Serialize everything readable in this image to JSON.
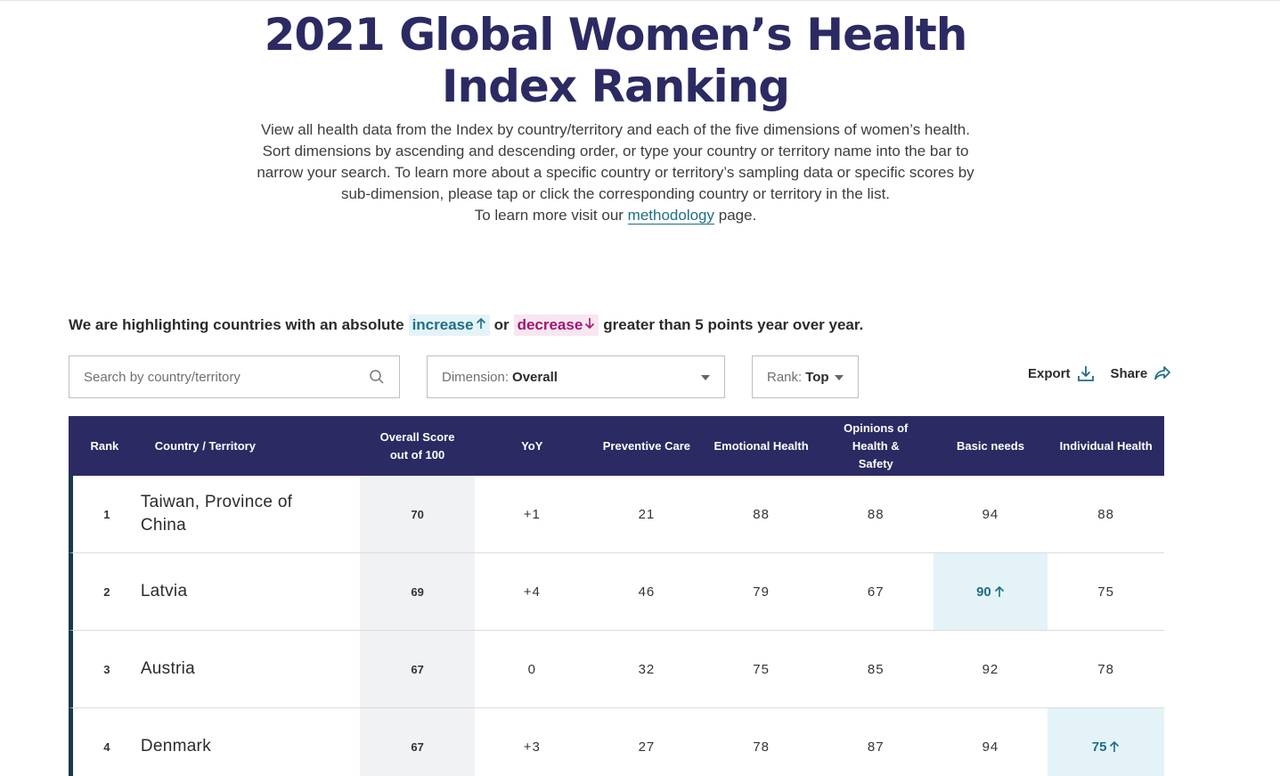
{
  "page": {
    "title": "2021 Global Women’s Health Index Ranking",
    "intro_text": "View all health data from the Index by country/territory and each of the five dimensions of women’s health. Sort dimensions by ascending and descending order, or type your country or territory name into the bar to narrow your search. To learn more about a specific country or territory’s sampling data or specific scores by sub-dimension, please tap or click the corresponding country or territory in the list.",
    "learn_more_prefix": "To learn more visit our",
    "methodology_link": "methodology",
    "learn_more_suffix": "page."
  },
  "highlight": {
    "prefix": "We are highlighting countries with an absolute",
    "increase_label": "increase",
    "or": "or",
    "decrease_label": "decrease",
    "suffix": "greater than 5 points year over year.",
    "increase_color": "#1f6e85",
    "decrease_color": "#a11773"
  },
  "controls": {
    "search_placeholder": "Search by country/territory",
    "dimension_label": "Dimension:",
    "dimension_value": "Overall",
    "rank_label": "Rank:",
    "rank_value": "Top",
    "export_label": "Export",
    "share_label": "Share"
  },
  "table": {
    "header_color": "#2b2a63",
    "headers": {
      "rank": "Rank",
      "country": "Country / Territory",
      "overall": "Overall Score out of 100",
      "yoy": "YoY",
      "preventive": "Preventive Care",
      "emotional": "Emotional Health",
      "opinions": "Opinions of Health & Safety",
      "basic": "Basic needs",
      "individual": "Individual Health"
    },
    "rows": [
      {
        "rank": "1",
        "country": "Taiwan, Province of China",
        "overall": "70",
        "yoy": "+1",
        "preventive": "21",
        "emotional": "88",
        "opinions": "88",
        "basic": "94",
        "individual": "88"
      },
      {
        "rank": "2",
        "country": "Latvia",
        "overall": "69",
        "yoy": "+4",
        "preventive": "46",
        "emotional": "79",
        "opinions": "67",
        "basic": "90",
        "individual": "75"
      },
      {
        "rank": "3",
        "country": "Austria",
        "overall": "67",
        "yoy": "0",
        "preventive": "32",
        "emotional": "75",
        "opinions": "85",
        "basic": "92",
        "individual": "78"
      },
      {
        "rank": "4",
        "country": "Denmark",
        "overall": "67",
        "yoy": "+3",
        "preventive": "27",
        "emotional": "78",
        "opinions": "87",
        "basic": "94",
        "individual": "75"
      }
    ]
  }
}
